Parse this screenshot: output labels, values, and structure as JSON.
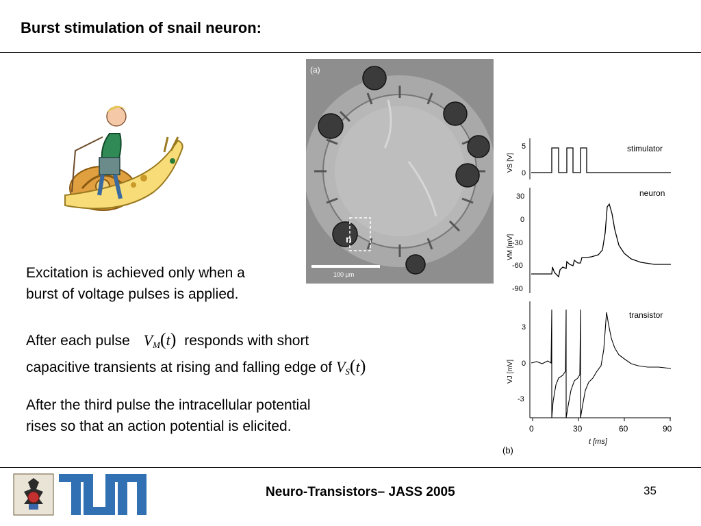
{
  "slide": {
    "title": "Burst stimulation of snail neuron:",
    "paragraphs": {
      "p1_line1": "Excitation is achieved only when a",
      "p1_line2": "burst of voltage pulses is applied.",
      "p2_line1_start": "After each pulse",
      "p2_line1_end": "responds with short",
      "p2_line2_start": "capacitive transients at rising and falling edge of",
      "p3_line1": "After the third pulse the intracellular potential",
      "p3_line2": "rises so that an action potential is elicited."
    },
    "math": {
      "vm_symbol": "V",
      "vm_sub": "M",
      "vs_symbol": "V",
      "vs_sub": "S",
      "t": "t",
      "lparen": "(",
      "rparen": ")"
    }
  },
  "figure_a": {
    "panel_label": "(a)",
    "scale_bar": "100 µm",
    "cell_label": "n"
  },
  "figure_b": {
    "panel_label": "(b)",
    "x_axis_label": "t [ms]",
    "x_ticks": [
      "0",
      "30",
      "60",
      "90"
    ],
    "stimulator": {
      "label": "stimulator",
      "ylabel": "VS [V]",
      "y_ticks": [
        "5",
        "0"
      ]
    },
    "neuron": {
      "label": "neuron",
      "ylabel": "VM [mV]",
      "y_ticks": [
        "30",
        "0",
        "-30",
        "-60",
        "-90"
      ]
    },
    "transistor": {
      "label": "transistor",
      "ylabel": "VJ [mV]",
      "y_ticks": [
        "3",
        "0",
        "-3"
      ]
    }
  },
  "footer": {
    "title": "Neuro-Transistors– JASS 2005",
    "page_number": "35"
  },
  "colors": {
    "tum_blue": "#3070b3",
    "text": "#000000"
  }
}
